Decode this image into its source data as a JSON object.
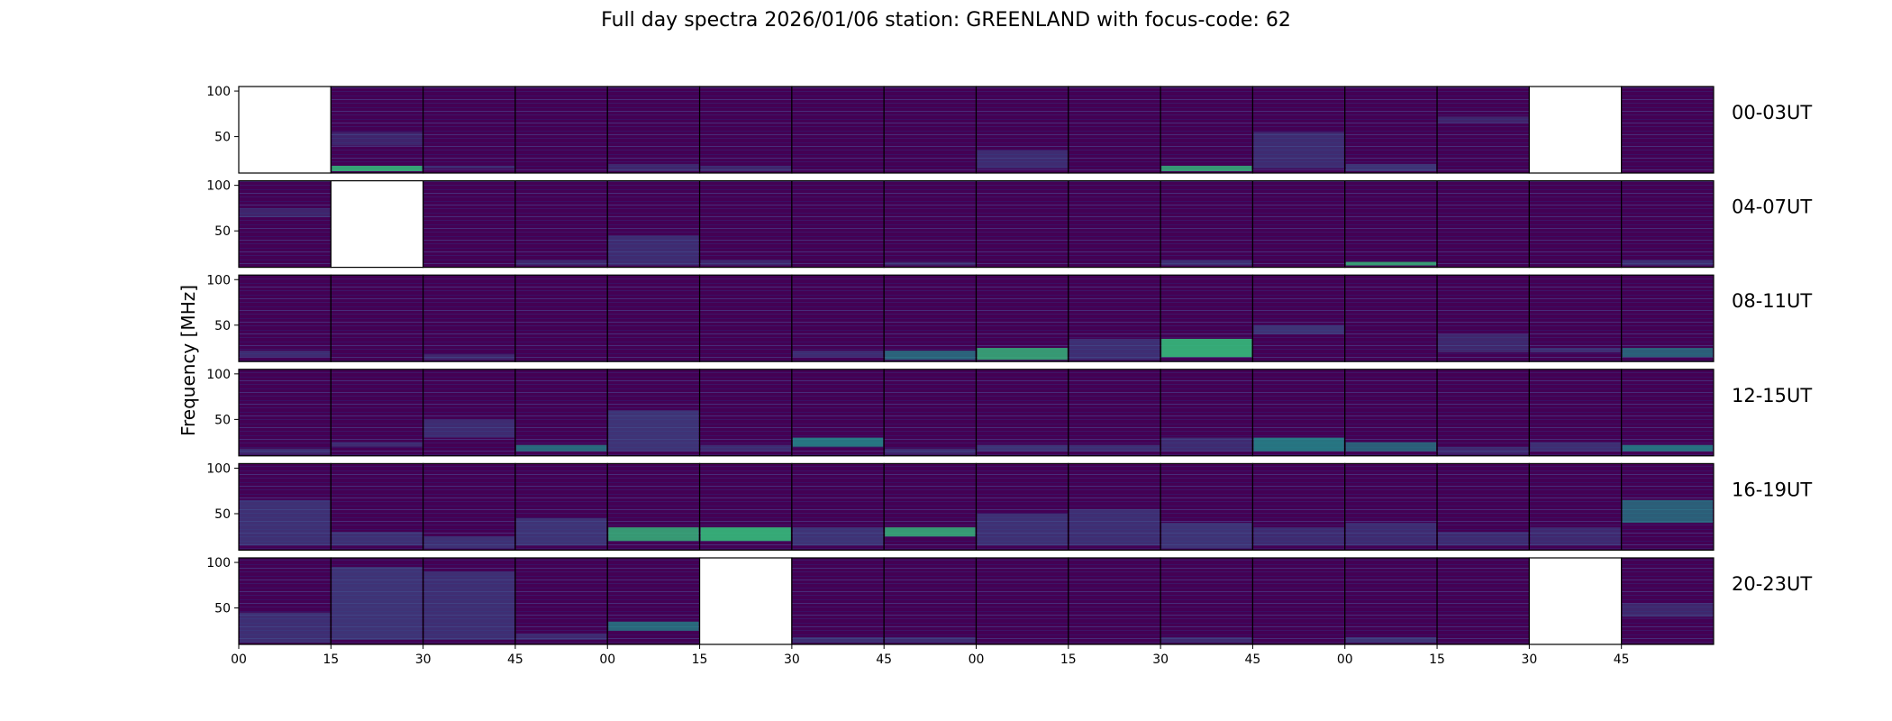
{
  "title": "Full day spectra 2026/01/06 station: GREENLAND with focus-code: 62",
  "colors": {
    "background": "#440154",
    "stripe_dark": "#3a0f63",
    "stripe_light": "#472c7a",
    "band_blue": "#3b528b",
    "band_teal": "#21918c",
    "band_green": "#35b779",
    "missing": "#ffffff",
    "frame": "#000000"
  },
  "chart_data": {
    "type": "heatmap",
    "title": "Full day spectra 2026/01/06 station: GREENLAND with focus-code: 62",
    "ylabel": "Frequency [MHz]",
    "ylim": [
      10,
      105
    ],
    "yticks": [
      50,
      100
    ],
    "xtick_labels": [
      "00",
      "15",
      "30",
      "45",
      "00",
      "15",
      "30",
      "45",
      "00",
      "15",
      "30",
      "45",
      "00",
      "15",
      "30",
      "45"
    ],
    "panels_per_row": 16,
    "minutes_per_panel": 15,
    "rows": [
      {
        "label": "00-03UT",
        "missing": [
          0,
          14
        ],
        "bands": [
          [
            1,
            12,
            18,
            0.9
          ],
          [
            1,
            40,
            55,
            0.15
          ],
          [
            2,
            15,
            18,
            0.25
          ],
          [
            4,
            12,
            20,
            0.2
          ],
          [
            5,
            12,
            18,
            0.2
          ],
          [
            8,
            15,
            35,
            0.3
          ],
          [
            10,
            12,
            18,
            0.8
          ],
          [
            11,
            15,
            55,
            0.3
          ],
          [
            12,
            12,
            20,
            0.45
          ],
          [
            13,
            65,
            72,
            0.15
          ]
        ]
      },
      {
        "label": "04-07UT",
        "missing": [
          1
        ],
        "bands": [
          [
            0,
            65,
            75,
            0.15
          ],
          [
            3,
            12,
            18,
            0.2
          ],
          [
            4,
            12,
            45,
            0.3
          ],
          [
            5,
            12,
            18,
            0.2
          ],
          [
            7,
            12,
            16,
            0.2
          ],
          [
            10,
            12,
            18,
            0.35
          ],
          [
            12,
            12,
            16,
            0.8
          ],
          [
            15,
            12,
            18,
            0.35
          ]
        ]
      },
      {
        "label": "08-11UT",
        "missing": [],
        "bands": [
          [
            0,
            15,
            22,
            0.3
          ],
          [
            2,
            12,
            18,
            0.2
          ],
          [
            6,
            15,
            22,
            0.3
          ],
          [
            7,
            12,
            22,
            0.55
          ],
          [
            8,
            12,
            25,
            0.8
          ],
          [
            9,
            12,
            35,
            0.35
          ],
          [
            10,
            15,
            35,
            0.95
          ],
          [
            11,
            40,
            50,
            0.45
          ],
          [
            13,
            20,
            40,
            0.2
          ],
          [
            14,
            20,
            25,
            0.35
          ],
          [
            15,
            15,
            25,
            0.5
          ]
        ]
      },
      {
        "label": "12-15UT",
        "missing": [],
        "bands": [
          [
            0,
            12,
            18,
            0.3
          ],
          [
            1,
            20,
            25,
            0.3
          ],
          [
            2,
            30,
            50,
            0.3
          ],
          [
            3,
            15,
            22,
            0.6
          ],
          [
            4,
            15,
            60,
            0.45
          ],
          [
            5,
            15,
            22,
            0.3
          ],
          [
            6,
            20,
            30,
            0.75
          ],
          [
            7,
            12,
            18,
            0.3
          ],
          [
            8,
            15,
            22,
            0.45
          ],
          [
            9,
            15,
            22,
            0.35
          ],
          [
            10,
            15,
            30,
            0.3
          ],
          [
            11,
            15,
            30,
            0.75
          ],
          [
            12,
            15,
            25,
            0.5
          ],
          [
            13,
            12,
            20,
            0.25
          ],
          [
            14,
            15,
            25,
            0.35
          ],
          [
            15,
            15,
            22,
            0.7
          ]
        ]
      },
      {
        "label": "16-19UT",
        "missing": [],
        "bands": [
          [
            0,
            15,
            65,
            0.4
          ],
          [
            1,
            15,
            30,
            0.4
          ],
          [
            2,
            12,
            25,
            0.4
          ],
          [
            3,
            15,
            45,
            0.45
          ],
          [
            4,
            20,
            35,
            0.8
          ],
          [
            5,
            20,
            35,
            0.95
          ],
          [
            6,
            15,
            35,
            0.45
          ],
          [
            7,
            25,
            35,
            0.8
          ],
          [
            8,
            15,
            50,
            0.4
          ],
          [
            9,
            15,
            55,
            0.35
          ],
          [
            10,
            12,
            40,
            0.45
          ],
          [
            11,
            15,
            35,
            0.3
          ],
          [
            12,
            15,
            40,
            0.3
          ],
          [
            13,
            15,
            30,
            0.3
          ],
          [
            14,
            15,
            35,
            0.25
          ],
          [
            15,
            40,
            65,
            0.5
          ]
        ]
      },
      {
        "label": "20-23UT",
        "missing": [
          5,
          14
        ],
        "bands": [
          [
            0,
            12,
            45,
            0.35
          ],
          [
            1,
            15,
            95,
            0.45
          ],
          [
            2,
            15,
            90,
            0.35
          ],
          [
            3,
            15,
            22,
            0.25
          ],
          [
            4,
            25,
            35,
            0.6
          ],
          [
            6,
            12,
            18,
            0.35
          ],
          [
            7,
            12,
            18,
            0.3
          ],
          [
            10,
            12,
            18,
            0.25
          ],
          [
            12,
            12,
            18,
            0.45
          ],
          [
            15,
            40,
            55,
            0.2
          ]
        ]
      }
    ]
  }
}
